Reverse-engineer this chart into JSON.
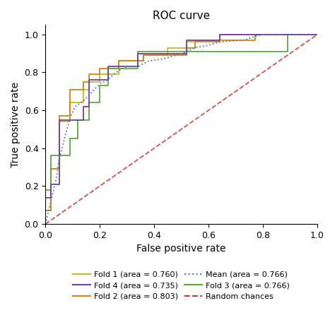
{
  "title": "ROC curve",
  "xlabel": "False positive rate",
  "ylabel": "True positive rate",
  "xlim": [
    0.0,
    1.0
  ],
  "ylim": [
    0.0,
    1.05
  ],
  "fold1_color": "#c8b820",
  "fold2_color": "#d4820a",
  "fold3_color": "#5aaa40",
  "fold4_color": "#7040a0",
  "mean_color": "#5577bb",
  "random_color": "#cc3333",
  "fold1_label": "Fold 1 (area = 0.760)",
  "fold2_label": "Fold 2 (area = 0.803)",
  "fold3_label": "Fold 3 (area = 0.766)",
  "fold4_label": "Fold 4 (area = 0.735)",
  "mean_label": "Mean (area = 0.766)",
  "random_label": "Random chances",
  "fold1_fpr": [
    0.0,
    0.0,
    0.02,
    0.02,
    0.05,
    0.05,
    0.09,
    0.09,
    0.14,
    0.14,
    0.16,
    0.16,
    0.2,
    0.2,
    0.27,
    0.27,
    0.36,
    0.36,
    0.45,
    0.45,
    0.52,
    0.52,
    0.55,
    0.55,
    0.64,
    0.64,
    0.77,
    0.77,
    0.8,
    0.8,
    1.0
  ],
  "fold1_tpr": [
    0.0,
    0.07,
    0.07,
    0.29,
    0.29,
    0.54,
    0.54,
    0.64,
    0.64,
    0.71,
    0.71,
    0.75,
    0.75,
    0.79,
    0.79,
    0.86,
    0.86,
    0.89,
    0.89,
    0.93,
    0.93,
    0.96,
    0.96,
    0.97,
    0.97,
    1.0,
    1.0,
    1.0,
    1.0,
    1.0,
    1.0
  ],
  "fold2_fpr": [
    0.0,
    0.0,
    0.02,
    0.02,
    0.05,
    0.05,
    0.09,
    0.09,
    0.14,
    0.14,
    0.16,
    0.16,
    0.2,
    0.2,
    0.27,
    0.27,
    0.36,
    0.36,
    0.52,
    0.52,
    0.55,
    0.55,
    0.64,
    0.64,
    0.77,
    0.77,
    0.82,
    0.82,
    1.0
  ],
  "fold2_tpr": [
    0.0,
    0.07,
    0.07,
    0.29,
    0.29,
    0.57,
    0.57,
    0.71,
    0.71,
    0.75,
    0.75,
    0.79,
    0.79,
    0.82,
    0.82,
    0.86,
    0.86,
    0.89,
    0.89,
    0.93,
    0.93,
    0.96,
    0.96,
    0.97,
    0.97,
    1.0,
    1.0,
    1.0,
    1.0
  ],
  "fold3_fpr": [
    0.0,
    0.0,
    0.02,
    0.02,
    0.05,
    0.05,
    0.09,
    0.09,
    0.12,
    0.12,
    0.16,
    0.16,
    0.2,
    0.2,
    0.23,
    0.23,
    0.27,
    0.27,
    0.34,
    0.34,
    0.55,
    0.55,
    0.64,
    0.64,
    0.73,
    0.73,
    0.8,
    0.8,
    0.89,
    0.89,
    1.0
  ],
  "fold3_tpr": [
    0.0,
    0.18,
    0.18,
    0.36,
    0.36,
    0.36,
    0.36,
    0.45,
    0.45,
    0.55,
    0.55,
    0.64,
    0.64,
    0.73,
    0.73,
    0.82,
    0.82,
    0.82,
    0.82,
    0.91,
    0.91,
    0.91,
    0.91,
    0.91,
    0.91,
    0.91,
    0.91,
    0.91,
    0.91,
    1.0,
    1.0
  ],
  "fold4_fpr": [
    0.0,
    0.0,
    0.02,
    0.02,
    0.05,
    0.05,
    0.09,
    0.09,
    0.14,
    0.14,
    0.16,
    0.16,
    0.2,
    0.2,
    0.23,
    0.23,
    0.27,
    0.27,
    0.34,
    0.34,
    0.45,
    0.45,
    0.52,
    0.52,
    0.59,
    0.59,
    0.64,
    0.64,
    0.73,
    0.73,
    0.8,
    0.8,
    1.0
  ],
  "fold4_tpr": [
    0.0,
    0.14,
    0.14,
    0.21,
    0.21,
    0.55,
    0.55,
    0.55,
    0.55,
    0.62,
    0.62,
    0.76,
    0.76,
    0.76,
    0.76,
    0.83,
    0.83,
    0.83,
    0.83,
    0.9,
    0.9,
    0.9,
    0.9,
    0.97,
    0.97,
    0.97,
    0.97,
    1.0,
    1.0,
    1.0,
    1.0,
    1.0,
    1.0
  ],
  "mean_fpr": [
    0.0,
    0.01,
    0.02,
    0.04,
    0.05,
    0.07,
    0.09,
    0.11,
    0.14,
    0.16,
    0.18,
    0.2,
    0.23,
    0.25,
    0.27,
    0.3,
    0.34,
    0.38,
    0.43,
    0.48,
    0.52,
    0.55,
    0.59,
    0.64,
    0.73,
    0.77,
    0.8,
    0.89,
    1.0
  ],
  "mean_tpr": [
    0.0,
    0.06,
    0.12,
    0.24,
    0.34,
    0.45,
    0.56,
    0.62,
    0.65,
    0.68,
    0.71,
    0.74,
    0.76,
    0.79,
    0.81,
    0.83,
    0.83,
    0.86,
    0.87,
    0.89,
    0.91,
    0.93,
    0.94,
    0.96,
    0.97,
    0.99,
    1.0,
    1.0,
    1.0
  ]
}
